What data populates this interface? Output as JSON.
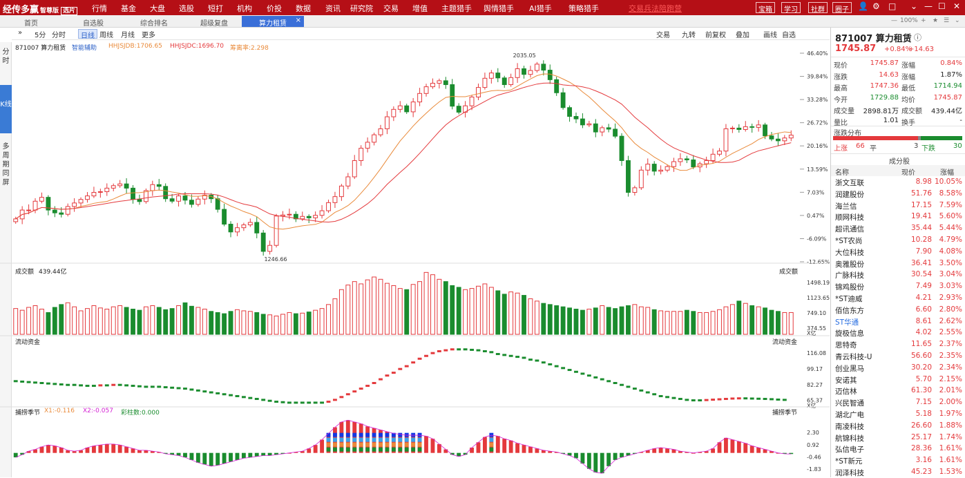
{
  "app": {
    "name": "经传多赢",
    "edition": "智尊版",
    "tag": "选片"
  },
  "menu": [
    "行情",
    "基金",
    "大盘",
    "选股",
    "短打",
    "机构",
    "价投",
    "数据",
    "资讯",
    "研究院",
    "交易",
    "增值",
    "主题猎手",
    "舆情猎手",
    "AI猎手",
    "策略猎手"
  ],
  "menu_warning": "交易兵法陪跑营",
  "menu_right": [
    "宝箱",
    "学习",
    "社群",
    "圈子"
  ],
  "tabs": [
    "首页",
    "自选股",
    "综合排名",
    "超级复盘",
    "算力租赁"
  ],
  "active_tab": "算力租赁",
  "zoom": "100%",
  "side": {
    "fen": "分时",
    "k": "K线",
    "multi": "多周期同屏"
  },
  "toolbar": {
    "periods": [
      "5分",
      "分时",
      "日线",
      "周线",
      "月线",
      "更多"
    ],
    "active_period": "日线",
    "right": [
      "交易",
      "九转",
      "前复权",
      "叠加",
      "画线",
      "自选"
    ]
  },
  "chart_header": {
    "stock": "871007 算力租赁",
    "assist": "智能辅助",
    "ma1": "HHJSJDB:1706.65",
    "ma2": "HHJSJDC:1696.70",
    "pen": "筹离率:2.298"
  },
  "chart_data": [
    {
      "type": "candlestick",
      "title": "871007 算力租赁 日线",
      "y_axis_ticks": [
        "46.40%",
        "39.84%",
        "33.28%",
        "26.72%",
        "20.16%",
        "13.59%",
        "7.03%",
        "0.47%",
        "-6.09%",
        "-12.65%"
      ],
      "annotations": [
        {
          "label": "2035.05",
          "type": "high"
        },
        {
          "label": "1246.66",
          "type": "low"
        }
      ],
      "series": [
        {
          "name": "close_change_pct",
          "values": [
            -0.5,
            2,
            2,
            4.5,
            5.6,
            2,
            1.2,
            0.8,
            3,
            4,
            5,
            6,
            7,
            7.2,
            8.2,
            8.9,
            9.4,
            8.2,
            5,
            4.4,
            7.5,
            9.2,
            8.7,
            5.2,
            4.5,
            6,
            4.8,
            3.6,
            5.1,
            6.2,
            5.2,
            2.2,
            -2,
            -4.2,
            -3,
            -2.2,
            -1.5,
            -4.5,
            -9.7,
            -8,
            0.3,
            0.6,
            0.8,
            -0.5,
            0.2,
            -0.2,
            0.5,
            1.8,
            4.1,
            5.8,
            8.8,
            11.4,
            16,
            19.5,
            21.2,
            23.3,
            25,
            28.4,
            30.5,
            31.5,
            29.8,
            32.6,
            35,
            36.9,
            37.9,
            38.6,
            37.5,
            31.4,
            29.7,
            31.5,
            34,
            36.7,
            39.3,
            40.8,
            39.4,
            37.5,
            39.5,
            42,
            40.4,
            41.5,
            43.3,
            41.6,
            38.9,
            35.2,
            31,
            28.5,
            27.8,
            26.1,
            26.4,
            24.1,
            25.3,
            24.9,
            22.9,
            16,
            7,
            8.3,
            13.3,
            15,
            13,
            13.3,
            14.3,
            15.7,
            16.5,
            16.2,
            14.2,
            15.1,
            16,
            17.8,
            18.7,
            25,
            25.2,
            24.8,
            25.6,
            25.4,
            26.1,
            23,
            22.1,
            21.6,
            22.4,
            23.2
          ]
        },
        {
          "name": "HHJSJDB",
          "values": [
            1706.65
          ]
        },
        {
          "name": "HHJSJDC",
          "values": [
            1696.7
          ]
        }
      ]
    },
    {
      "type": "bar",
      "title": "成交额",
      "value": "439.44亿",
      "y_axis_ticks": [
        "1498.19",
        "1123.65",
        "749.10",
        "374.55"
      ],
      "unit": "X亿",
      "values": [
        0.45,
        0.42,
        0.47,
        0.5,
        0.44,
        0.38,
        0.47,
        0.52,
        0.55,
        0.48,
        0.41,
        0.45,
        0.5,
        0.46,
        0.44,
        0.48,
        0.5,
        0.47,
        0.44,
        0.42,
        0.48,
        0.5,
        0.47,
        0.43,
        0.45,
        0.5,
        0.55,
        0.49,
        0.47,
        0.44,
        0.4,
        0.38,
        0.36,
        0.4,
        0.43,
        0.41,
        0.4,
        0.38,
        0.35,
        0.34,
        0.32,
        0.35,
        0.38,
        0.36,
        0.37,
        0.39,
        0.42,
        0.45,
        0.52,
        0.62,
        0.78,
        0.86,
        0.92,
        0.88,
        0.95,
        1.0,
        0.96,
        0.89,
        0.85,
        0.8,
        0.78,
        0.87,
        0.92,
        1.08,
        1.04,
        0.96,
        0.92,
        0.85,
        0.82,
        0.78,
        0.8,
        0.84,
        0.88,
        0.82,
        0.76,
        0.7,
        0.74,
        0.72,
        0.68,
        0.62,
        0.58,
        0.54,
        0.52,
        0.5,
        0.48,
        0.46,
        0.44,
        0.42,
        0.44,
        0.46,
        0.5,
        0.47,
        0.45,
        0.48,
        0.5,
        0.52,
        0.48,
        0.47,
        0.43,
        0.41,
        0.4,
        0.4,
        0.4,
        0.42,
        0.4,
        0.38,
        0.38,
        0.4,
        0.43,
        0.48,
        0.52,
        0.58,
        0.54,
        0.5,
        0.48,
        0.46,
        0.42,
        0.4,
        0.38,
        0.38
      ]
    },
    {
      "type": "bar",
      "title": "流动资金",
      "y_axis_ticks": [
        "116.08",
        "99.17",
        "82.27",
        "65.37"
      ],
      "unit": "X亿",
      "values": [
        86,
        85.5,
        85,
        84.5,
        84,
        83.5,
        83,
        82.5,
        82,
        82,
        81.5,
        81,
        81,
        81.5,
        81.5,
        82,
        82,
        81.5,
        81,
        80.5,
        80,
        80,
        80,
        79.5,
        79,
        78.5,
        78,
        77,
        76,
        75,
        74,
        73,
        72,
        71,
        70,
        69,
        68,
        67,
        66,
        65,
        64,
        63.5,
        63,
        63,
        63,
        63,
        63,
        63,
        64,
        66,
        69,
        72,
        75,
        78,
        81,
        84,
        88,
        92,
        95,
        99,
        102,
        106,
        110,
        113,
        116,
        118,
        119,
        120,
        120,
        120,
        119.5,
        119,
        118,
        117,
        115,
        114,
        113,
        112,
        111,
        109,
        108,
        106,
        104,
        102,
        100,
        98,
        96,
        94,
        92,
        90,
        88,
        86,
        84,
        82,
        80,
        78,
        76,
        74,
        72,
        70,
        69,
        68,
        67,
        66,
        65.5,
        65.5,
        65.8,
        66.2,
        66.6,
        67,
        67.4,
        67.6,
        67.6,
        67.4,
        67.2,
        67,
        66.7,
        66.3,
        66
      ]
    },
    {
      "type": "bar",
      "title": "捕捞季节",
      "x1": "X1:-0.116",
      "x2": "X2:-0.057",
      "bars": "彩柱数:0.000",
      "y_axis_ticks": [
        "2.30",
        "0.92",
        "-0.46",
        "-1.83"
      ],
      "values": [
        -0.5,
        -0.2,
        0.2,
        0.4,
        0.7,
        0.9,
        0.8,
        0.6,
        0.3,
        0.2,
        0.3,
        0.6,
        0.8,
        0.9,
        1.0,
        1.0,
        0.9,
        0.7,
        0.5,
        0.3,
        0.3,
        0.2,
        0.1,
        -0.1,
        -0.2,
        -0.3,
        -0.5,
        -0.8,
        -1.1,
        -1.3,
        -1.5,
        -1.4,
        -1.2,
        -1.0,
        -0.8,
        -0.6,
        -0.5,
        -0.4,
        -0.3,
        -0.3,
        -0.2,
        -0.1,
        0.0,
        0.1,
        0.2,
        0.5,
        0.9,
        1.5,
        2.2,
        2.9,
        3.5,
        3.7,
        3.5,
        3.3,
        3.0,
        2.8,
        2.6,
        2.4,
        2.2,
        2.1,
        2.0,
        2.0,
        2.0,
        1.9,
        1.6,
        1.0,
        0.4,
        -0.2,
        -0.4,
        -0.2,
        0.6,
        1.2,
        1.8,
        2.0,
        1.9,
        1.6,
        1.4,
        1.1,
        0.9,
        0.7,
        0.5,
        0.3,
        0.2,
        0.1,
        -0.1,
        -0.3,
        -0.6,
        -1.2,
        -1.8,
        -2.2,
        -2.3,
        -1.5,
        -0.8,
        -0.5,
        -0.3,
        -0.1,
        0.1,
        0.3,
        0.5,
        0.6,
        0.5,
        0.4,
        0.2,
        0.1,
        0.0,
        0.1,
        0.2,
        0.5,
        1.2,
        1.7,
        1.5,
        1.3,
        1.1,
        0.8,
        0.6,
        0.4,
        0.2,
        0.0,
        -0.1,
        -0.12
      ]
    }
  ],
  "panel_labels": {
    "vol": "成交额",
    "cash": "流动资金",
    "hunt": "捕捞季节"
  },
  "quote": {
    "code_name": "871007 算力租赁",
    "price": "1745.87",
    "chg_pct": "+0.84%",
    "chg": "+14.63",
    "rows": [
      {
        "l1": "现价",
        "v1": "1745.87",
        "c1": "r",
        "l2": "涨幅",
        "v2": "0.84%",
        "c2": "r"
      },
      {
        "l1": "涨跌",
        "v1": "14.63",
        "c1": "r",
        "l2": "涨幅",
        "v2": "1.87%",
        "c2": "k"
      },
      {
        "l1": "最高",
        "v1": "1747.36",
        "c1": "r",
        "l2": "最低",
        "v2": "1714.94",
        "c2": "g"
      },
      {
        "l1": "今开",
        "v1": "1729.88",
        "c1": "g",
        "l2": "均价",
        "v2": "1745.87",
        "c2": "r"
      },
      {
        "l1": "成交量",
        "v1": "2898.81万",
        "c1": "k",
        "l2": "成交额",
        "v2": "439.44亿",
        "c2": "k"
      },
      {
        "l1": "量比",
        "v1": "1.01",
        "c1": "k",
        "l2": "换手",
        "v2": "-",
        "c2": "k"
      }
    ],
    "dist_title": "涨跌分布",
    "up_label": "上涨",
    "up": "66",
    "flat_label": "平",
    "flat": "3",
    "down_label": "下跌",
    "down": "30",
    "comp_title": "成分股",
    "col_name": "名称",
    "col_price": "现价",
    "col_chg": "涨幅",
    "stocks": [
      [
        "浙文互联",
        "8.98",
        "10.05%"
      ],
      [
        "润建股份",
        "51.76",
        "8.58%"
      ],
      [
        "海兰信",
        "17.15",
        "7.59%"
      ],
      [
        "顺网科技",
        "19.41",
        "5.60%"
      ],
      [
        "超讯通信",
        "35.44",
        "5.44%"
      ],
      [
        "*ST农尚",
        "10.28",
        "4.79%"
      ],
      [
        "大位科技",
        "7.90",
        "4.08%"
      ],
      [
        "奥雅股份",
        "36.41",
        "3.50%"
      ],
      [
        "广脉科技",
        "30.54",
        "3.04%"
      ],
      [
        "锦鸡股份",
        "7.49",
        "3.03%"
      ],
      [
        "*ST迪威",
        "4.21",
        "2.93%"
      ],
      [
        "佰信东方",
        "6.60",
        "2.80%"
      ],
      [
        "ST华通",
        "8.61",
        "2.62%"
      ],
      [
        "旋极信息",
        "4.02",
        "2.55%"
      ],
      [
        "思特奇",
        "11.65",
        "2.37%"
      ],
      [
        "青云科技-U",
        "56.60",
        "2.35%"
      ],
      [
        "创业黑马",
        "30.20",
        "2.34%"
      ],
      [
        "安诺其",
        "5.70",
        "2.15%"
      ],
      [
        "迈信林",
        "61.30",
        "2.01%"
      ],
      [
        "兴民智通",
        "7.15",
        "2.00%"
      ],
      [
        "湖北广电",
        "5.18",
        "1.97%"
      ],
      [
        "南凌科技",
        "26.60",
        "1.88%"
      ],
      [
        "航锦科技",
        "25.17",
        "1.74%"
      ],
      [
        "弘信电子",
        "28.36",
        "1.61%"
      ],
      [
        "*ST新元",
        "3.16",
        "1.61%"
      ],
      [
        "润泽科技",
        "45.23",
        "1.53%"
      ]
    ]
  },
  "colors": {
    "up": "#e4393c",
    "down": "#1a8c2e",
    "ma1": "#e98a3a",
    "ma2": "#e4393c",
    "brand": "#b50f16"
  }
}
